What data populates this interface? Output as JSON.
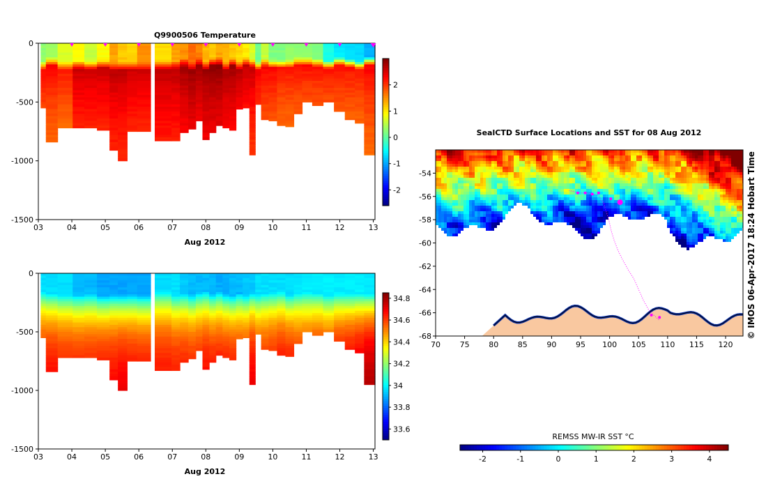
{
  "chart_data": [
    {
      "id": "temperature",
      "type": "heatmap",
      "title": "Q9900506  Temperature",
      "xlabel": "Aug 2012",
      "ylabel": "",
      "x_tick_labels": [
        "03",
        "04",
        "05",
        "06",
        "07",
        "08",
        "09",
        "10",
        "11",
        "12",
        "13"
      ],
      "x_ticks": [
        3,
        4,
        5,
        6,
        7,
        8,
        9,
        10,
        11,
        12,
        13
      ],
      "xlim": [
        3,
        13.05
      ],
      "ylim": [
        -1500,
        0
      ],
      "y_ticks": [
        0,
        -500,
        -1000,
        -1500
      ],
      "y_tick_labels": [
        "0",
        "-500",
        "-1000",
        "-1500"
      ],
      "colorbar": {
        "min": -2.6,
        "max": 3.0,
        "ticks": [
          2,
          1,
          0,
          -1,
          -2
        ],
        "tick_labels": [
          "2",
          "1",
          "0",
          "-1",
          "-2"
        ],
        "colormap": "jet"
      },
      "profile_days": [
        3.1,
        3.35,
        3.8,
        4.25,
        4.5,
        5.0,
        5.25,
        5.5,
        5.8,
        6.1,
        6.85,
        7.1,
        7.35,
        7.6,
        7.8,
        8.0,
        8.2,
        8.4,
        8.6,
        8.8,
        9.0,
        9.2,
        9.4,
        9.55,
        9.75,
        10.0,
        10.25,
        10.5,
        10.75,
        11.0,
        11.35,
        11.65,
        12.0,
        12.3,
        12.6,
        12.85
      ],
      "profile_max_depth": [
        -550,
        -840,
        -720,
        -720,
        -720,
        -740,
        -910,
        -1000,
        -750,
        -750,
        -830,
        -830,
        -760,
        -730,
        -660,
        -820,
        -760,
        -700,
        -720,
        -740,
        -560,
        -550,
        -950,
        -520,
        -650,
        -660,
        -700,
        -710,
        -600,
        -500,
        -530,
        -500,
        -580,
        -650,
        -680,
        -950
      ],
      "markers": {
        "days": [
          4,
          5,
          6,
          7,
          8,
          9,
          10,
          11,
          12,
          13
        ],
        "color": "#ff00ff"
      },
      "gap": [
        6.35,
        6.85
      ],
      "mixed_layer_temp": [
        0.3,
        0.4,
        0.7,
        0.9,
        0.6,
        0.9,
        1.4,
        1.2,
        1.1,
        1.5,
        1.1,
        1.4,
        1.5,
        1.7,
        1.6,
        1.3,
        1.2,
        1.4,
        1.3,
        1.2,
        1.1,
        1.0,
        0.7,
        0.1,
        0.6,
        0.2,
        0.2,
        0.3,
        0.3,
        0.3,
        0.2,
        -0.4,
        -0.6,
        -0.7,
        -0.7,
        -0.9
      ],
      "deep_temp": [
        2.0,
        2.0,
        1.9,
        2.3,
        2.3,
        2.3,
        2.4,
        2.4,
        2.3,
        2.3,
        2.4,
        2.4,
        2.5,
        2.6,
        2.5,
        2.6,
        2.6,
        2.6,
        2.5,
        2.5,
        2.4,
        2.3,
        2.3,
        2.1,
        2.0,
        2.0,
        1.9,
        1.9,
        1.9,
        1.9,
        1.9,
        1.9,
        1.9,
        1.9,
        1.9,
        2.0
      ]
    },
    {
      "id": "salinity",
      "type": "heatmap",
      "title": "",
      "xlabel": "Aug 2012",
      "ylabel": "",
      "x_tick_labels": [
        "03",
        "04",
        "05",
        "06",
        "07",
        "08",
        "09",
        "10",
        "11",
        "12",
        "13"
      ],
      "x_ticks": [
        3,
        4,
        5,
        6,
        7,
        8,
        9,
        10,
        11,
        12,
        13
      ],
      "xlim": [
        3,
        13.05
      ],
      "ylim": [
        -1500,
        0
      ],
      "y_ticks": [
        0,
        -500,
        -1000,
        -1500
      ],
      "y_tick_labels": [
        "0",
        "-500",
        "-1000",
        "-1500"
      ],
      "colorbar": {
        "min": 33.5,
        "max": 34.85,
        "ticks": [
          34.8,
          34.6,
          34.4,
          34.2,
          34.0,
          33.8,
          33.6
        ],
        "tick_labels": [
          "34.8",
          "34.6",
          "34.4",
          "34.2",
          "34",
          "33.8",
          "33.6"
        ],
        "colormap": "jet"
      },
      "surface_salinity": [
        33.95,
        33.95,
        33.95,
        33.9,
        33.9,
        33.87,
        33.87,
        33.87,
        33.87,
        33.87,
        33.95,
        33.95,
        33.92,
        33.9,
        33.9,
        33.9,
        33.9,
        33.88,
        33.88,
        33.9,
        33.9,
        33.92,
        33.92,
        33.95,
        33.95,
        33.95,
        33.95,
        33.95,
        33.96,
        33.97,
        33.97,
        33.97,
        33.97,
        33.97,
        33.97,
        33.97
      ],
      "deep_salinity": [
        34.68,
        34.7,
        34.68,
        34.68,
        34.68,
        34.7,
        34.7,
        34.72,
        34.7,
        34.7,
        34.68,
        34.68,
        34.68,
        34.68,
        34.68,
        34.7,
        34.7,
        34.7,
        34.7,
        34.7,
        34.68,
        34.68,
        34.72,
        34.66,
        34.66,
        34.68,
        34.7,
        34.7,
        34.66,
        34.66,
        34.68,
        34.68,
        34.72,
        34.74,
        34.76,
        34.8
      ]
    },
    {
      "id": "sst_map",
      "type": "heatmap",
      "title": "SealCTD Surface Locations and SST for 08 Aug 2012",
      "xlabel": "",
      "ylabel": "",
      "x_tick_labels": [
        "70",
        "75",
        "80",
        "85",
        "90",
        "95",
        "100",
        "105",
        "110",
        "115",
        "120"
      ],
      "x_ticks": [
        70,
        75,
        80,
        85,
        90,
        95,
        100,
        105,
        110,
        115,
        120
      ],
      "xlim": [
        70,
        123
      ],
      "y_tick_labels": [
        "-54",
        "-56",
        "-58",
        "-60",
        "-62",
        "-64",
        "-66",
        "-68"
      ],
      "y_ticks": [
        -54,
        -56,
        -58,
        -60,
        -62,
        -64,
        -66,
        -68
      ],
      "ylim": [
        -68,
        -52
      ],
      "colorbar": {
        "label": "REMSS MW-IR SST °C",
        "min": -2.6,
        "max": 4.5,
        "ticks": [
          -2,
          -1,
          0,
          1,
          2,
          3,
          4
        ],
        "tick_labels": [
          "-2",
          "-1",
          "0",
          "1",
          "2",
          "3",
          "4"
        ],
        "colormap": "jet"
      },
      "track": [
        [
          108.5,
          -66.6
        ],
        [
          107.6,
          -66.2
        ],
        [
          106.8,
          -65.8
        ],
        [
          105.9,
          -65.0
        ],
        [
          105.0,
          -64.0
        ],
        [
          104.2,
          -63.1
        ],
        [
          103.2,
          -62.3
        ],
        [
          102.2,
          -61.4
        ],
        [
          101.4,
          -60.6
        ],
        [
          100.8,
          -59.8
        ],
        [
          100.3,
          -59.0
        ],
        [
          100.0,
          -58.3
        ],
        [
          99.6,
          -57.6
        ],
        [
          99.2,
          -57.0
        ],
        [
          99.0,
          -56.6
        ],
        [
          98.5,
          -56.2
        ],
        [
          98.0,
          -55.9
        ],
        [
          97.0,
          -55.8
        ],
        [
          96.0,
          -55.7
        ],
        [
          95.0,
          -55.7
        ],
        [
          94.0,
          -55.6
        ],
        [
          93.0,
          -55.5
        ]
      ],
      "track_markers": [
        [
          94.5,
          -55.7
        ],
        [
          95.8,
          -55.7
        ],
        [
          97.0,
          -55.8
        ],
        [
          98.1,
          -55.7
        ],
        [
          100.2,
          -56.2
        ],
        [
          107.2,
          -66.2
        ],
        [
          108.6,
          -66.4
        ]
      ],
      "latest_position": [
        101.8,
        -56.5
      ],
      "stamp": "©  IMOS 06-Apr-2017 18:24 Hobart Time"
    }
  ]
}
